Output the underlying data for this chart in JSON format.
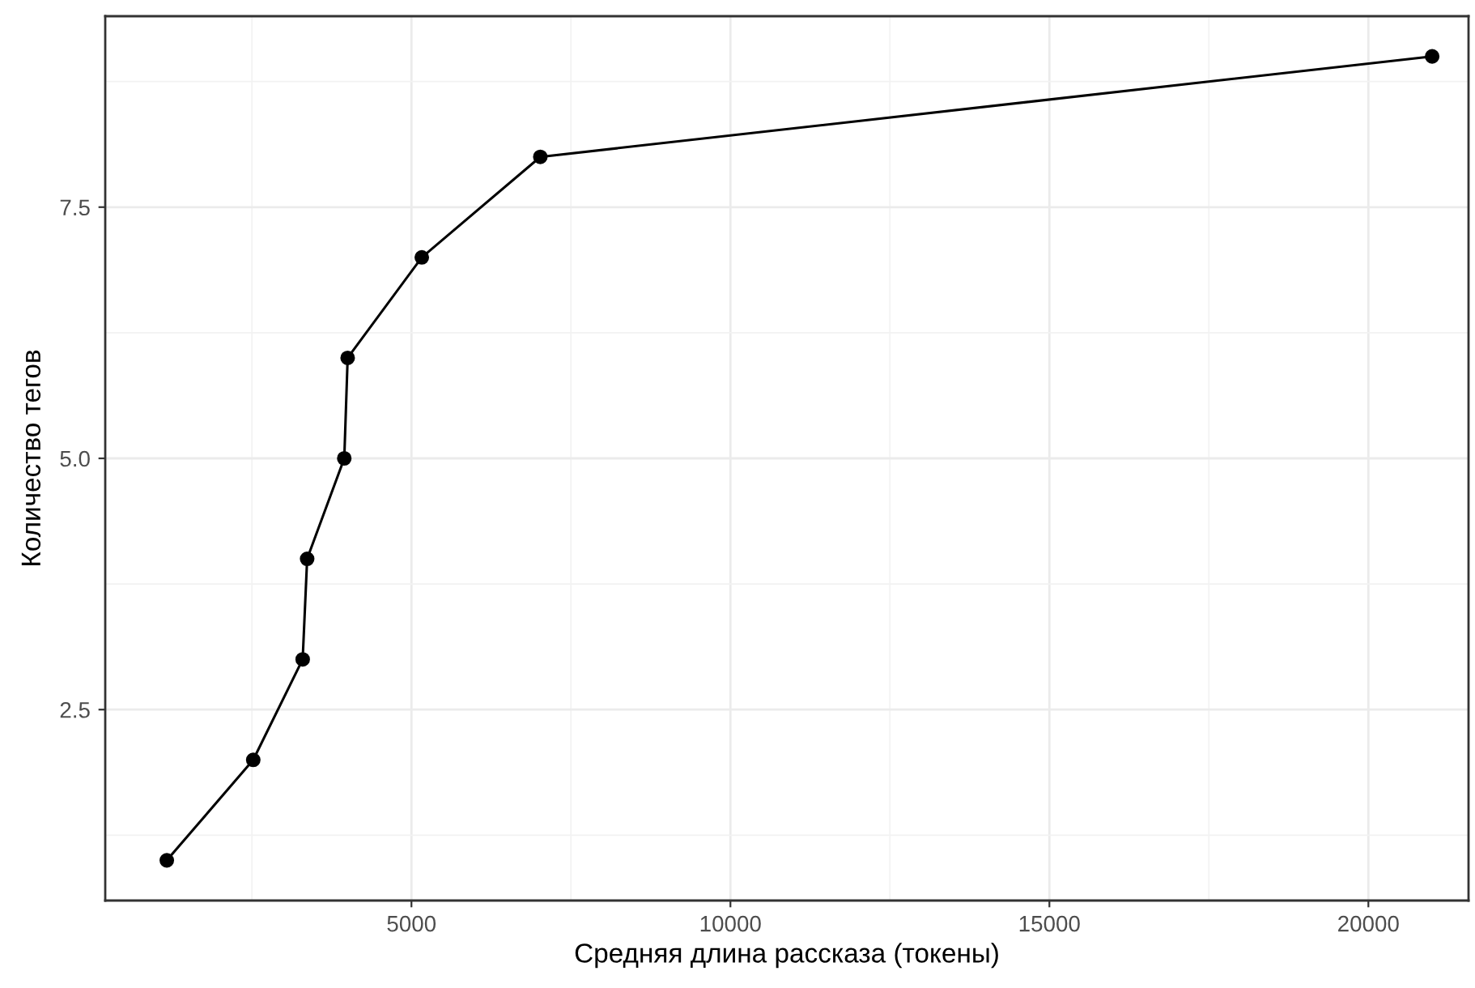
{
  "chart_data": {
    "type": "line",
    "xlabel": "Средняя длина рассказа (токены)",
    "ylabel": "Количество тегов",
    "x": [
      1165,
      2520,
      3295,
      3365,
      3947,
      4000,
      5162,
      7020,
      21000
    ],
    "series": [
      {
        "color": "#000000",
        "values": [
          1,
          2,
          3,
          4,
          5,
          6,
          7,
          8,
          9
        ]
      }
    ],
    "xlim": [
      200,
      21570
    ],
    "xticks": [
      5000,
      10000,
      15000,
      20000
    ],
    "ylim": [
      0.6,
      9.4
    ],
    "yticks": [
      {
        "value": 2.5,
        "label": "2.5"
      },
      {
        "value": 5.0,
        "label": "5.0"
      },
      {
        "value": 7.5,
        "label": "7.5"
      }
    ],
    "grid": true,
    "marker": "circle",
    "line_style": "solid"
  }
}
